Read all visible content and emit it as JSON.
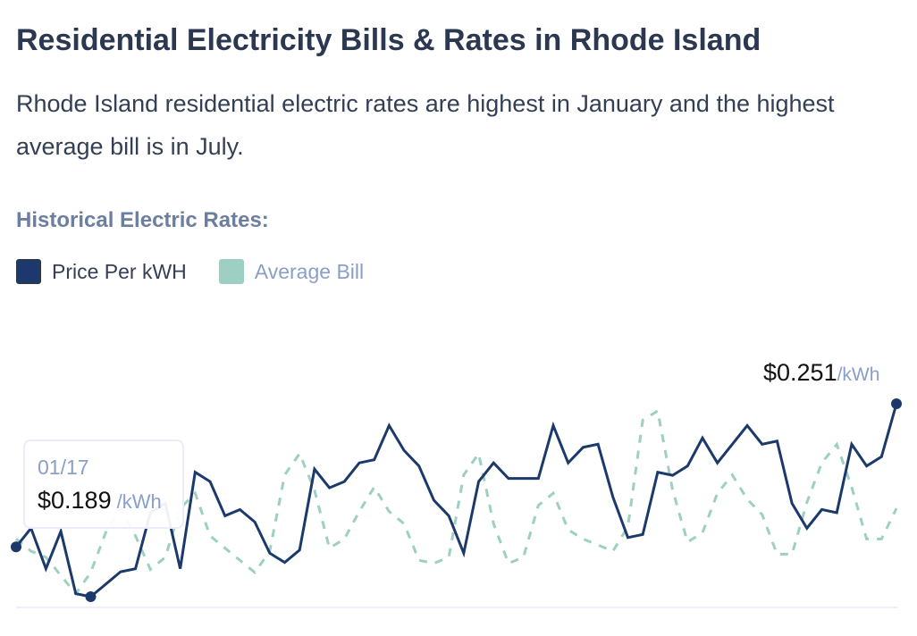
{
  "header": {
    "title": "Residential Electricity Bills & Rates in Rhode Island",
    "subtitle": "Rhode Island residential electric rates are highest in January and the highest average bill is in July."
  },
  "section_title": "Historical Electric Rates:",
  "legend": [
    {
      "label": "Price Per kWH",
      "color": "#1a3a6e"
    },
    {
      "label": "Average Bill",
      "color": "#9ecfc3"
    }
  ],
  "tooltip": {
    "date": "01/17",
    "value": "$0.189",
    "unit": "/kWh"
  },
  "last_label": {
    "value": "$0.251",
    "unit": "/kWh"
  },
  "chart_data": {
    "type": "line",
    "title": "",
    "xlabel": "",
    "ylabel": "",
    "grid": false,
    "legend_placement": "top-left",
    "highlighted_points": [
      0,
      5,
      59
    ],
    "series": [
      {
        "name": "Price Per kWH",
        "color": "#1b3a6b",
        "style": "solid",
        "values": [
          0.205,
          0.211,
          0.198,
          0.21,
          0.19,
          0.189,
          0.193,
          0.197,
          0.198,
          0.216,
          0.219,
          0.198,
          0.229,
          0.226,
          0.215,
          0.217,
          0.213,
          0.203,
          0.2,
          0.204,
          0.23,
          0.224,
          0.226,
          0.232,
          0.233,
          0.244,
          0.236,
          0.231,
          0.22,
          0.215,
          0.203,
          0.226,
          0.232,
          0.227,
          0.227,
          0.227,
          0.244,
          0.232,
          0.237,
          0.238,
          0.221,
          0.208,
          0.209,
          0.229,
          0.228,
          0.231,
          0.24,
          0.232,
          0.238,
          0.244,
          0.238,
          0.239,
          0.219,
          0.211,
          0.217,
          0.216,
          0.238,
          0.231,
          0.234,
          0.251
        ]
      },
      {
        "name": "Average Bill",
        "color": "#9dd0c2",
        "style": "dashed",
        "values": [
          108,
          104,
          102,
          96,
          90,
          97,
          110,
          118,
          109,
          98,
          102,
          118,
          123,
          109,
          105,
          101,
          97,
          104,
          129,
          136,
          124,
          105,
          108,
          117,
          125,
          117,
          113,
          101,
          100,
          102,
          129,
          136,
          113,
          100,
          102,
          119,
          123,
          111,
          108,
          106,
          104,
          112,
          147,
          150,
          124,
          107,
          110,
          123,
          129,
          121,
          116,
          103,
          103,
          120,
          133,
          139,
          125,
          108,
          108,
          118
        ]
      }
    ]
  }
}
